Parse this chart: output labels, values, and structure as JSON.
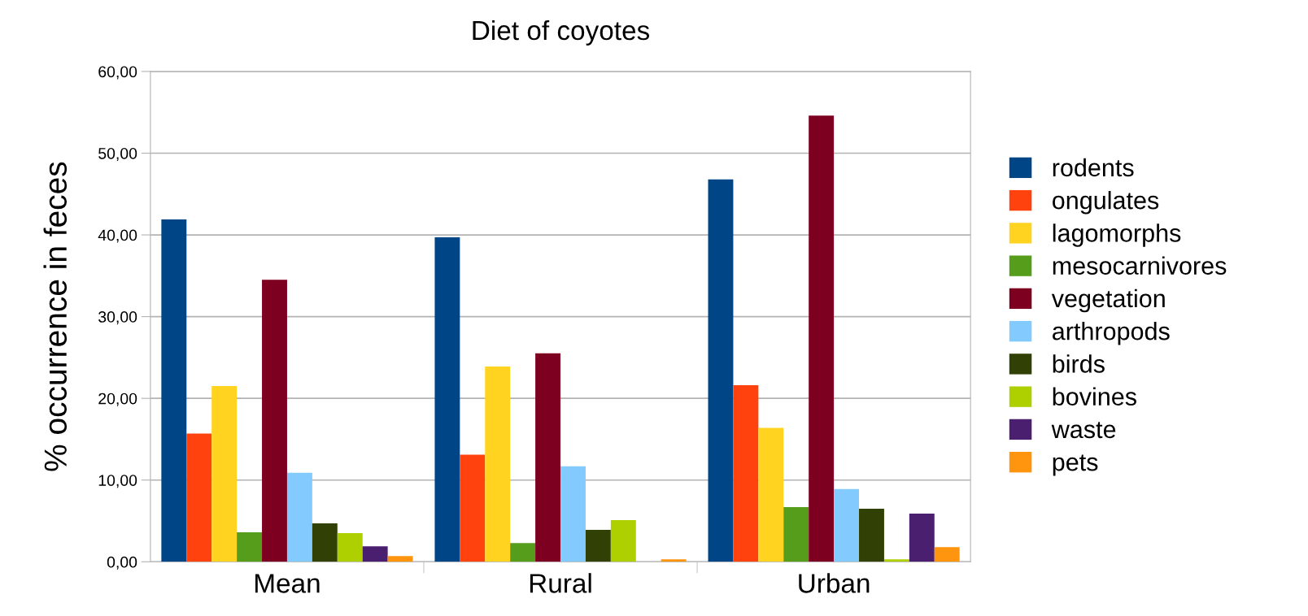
{
  "chart_data": {
    "type": "bar",
    "title": "Diet of coyotes",
    "ylabel": "% occurrence in feces",
    "categories": [
      "Mean",
      "Rural",
      "Urban"
    ],
    "series": [
      {
        "name": "rodents",
        "color": "#004586",
        "values": [
          41.9,
          39.7,
          46.8
        ]
      },
      {
        "name": "ongulates",
        "color": "#ff420e",
        "values": [
          15.7,
          13.1,
          21.6
        ]
      },
      {
        "name": "lagomorphs",
        "color": "#ffd320",
        "values": [
          21.5,
          23.9,
          16.4
        ]
      },
      {
        "name": "mesocarnivores",
        "color": "#579d1c",
        "values": [
          3.6,
          2.3,
          6.7
        ]
      },
      {
        "name": "vegetation",
        "color": "#7e0021",
        "values": [
          34.5,
          25.5,
          54.6
        ]
      },
      {
        "name": "arthropods",
        "color": "#83caff",
        "values": [
          10.9,
          11.7,
          8.9
        ]
      },
      {
        "name": "birds",
        "color": "#314004",
        "values": [
          4.7,
          3.9,
          6.5
        ]
      },
      {
        "name": "bovines",
        "color": "#aecf00",
        "values": [
          3.5,
          5.1,
          0.3
        ]
      },
      {
        "name": "waste",
        "color": "#4b1f6f",
        "values": [
          1.9,
          0,
          5.9
        ]
      },
      {
        "name": "pets",
        "color": "#ff950e",
        "values": [
          0.7,
          0.3,
          1.8
        ]
      }
    ],
    "ylim": [
      0,
      60
    ],
    "yticks": [
      {
        "value": 0,
        "label": "0,00"
      },
      {
        "value": 10,
        "label": "10,00"
      },
      {
        "value": 20,
        "label": "20,00"
      },
      {
        "value": 30,
        "label": "30,00"
      },
      {
        "value": 40,
        "label": "40,00"
      },
      {
        "value": 50,
        "label": "50,00"
      },
      {
        "value": 60,
        "label": "60,00"
      }
    ],
    "grid": "y",
    "legend": "right"
  }
}
